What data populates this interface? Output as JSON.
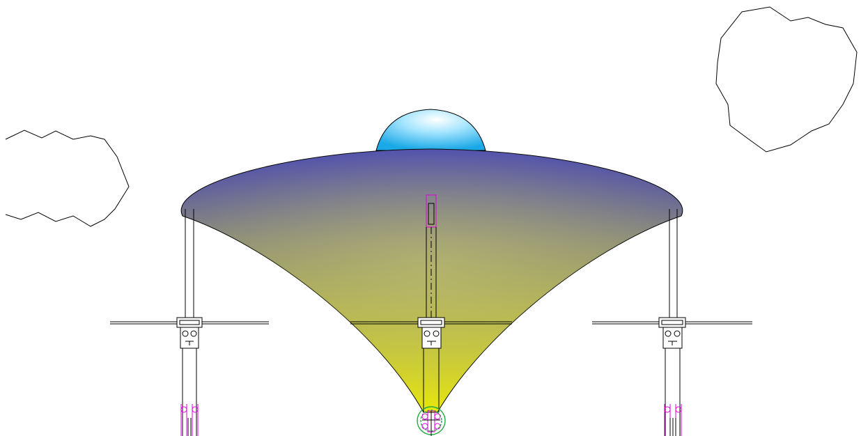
{
  "colors": {
    "canvas": "#ffffff",
    "line": "#000000",
    "canopy_top": "#4545b5",
    "canopy_mid": "#8a8a7a",
    "canopy_bottom": "#e8e80a",
    "dome_light": "#e8f8ff",
    "dome_dark": "#22b0e8",
    "accent_magenta": "#e000e0",
    "accent_green": "#22aa44"
  },
  "elements": {
    "clouds": 2,
    "support_posts": 3,
    "dome": 1
  }
}
